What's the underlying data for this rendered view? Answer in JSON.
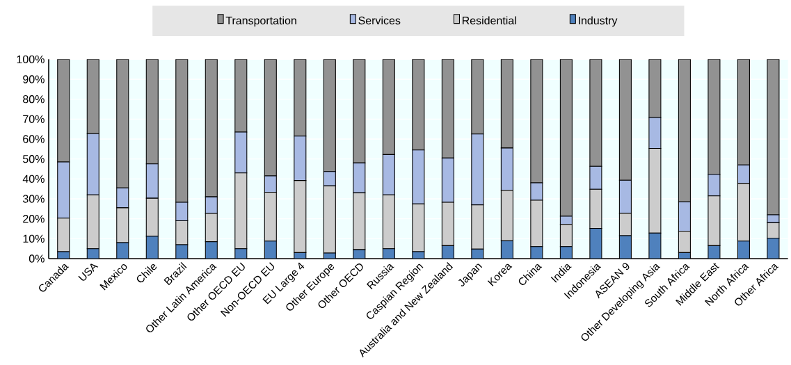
{
  "chart_data": {
    "type": "bar",
    "stacked": true,
    "categories": [
      "Canada",
      "USA",
      "Mexico",
      "Chile",
      "Brazil",
      "Other Latin America",
      "Other OECD EU",
      "Non-OECD EU",
      "EU Large 4",
      "Other Europe",
      "Other OECD",
      "Russia",
      "Caspian Region",
      "Australia and New Zealand",
      "Japan",
      "Korea",
      "China",
      "India",
      "Indonesia",
      "ASEAN 9",
      "Other Developing Asia",
      "South Africa",
      "Middle East",
      "North Africa",
      "Other Africa"
    ],
    "series": [
      {
        "name": "Industry",
        "color": "#4f81bd",
        "values": [
          3.5,
          5,
          8,
          11.3,
          7,
          8.5,
          5,
          8.8,
          3,
          2.8,
          4.5,
          5,
          3.5,
          6.5,
          4.8,
          9,
          6,
          6,
          15.2,
          11.5,
          12.8,
          3,
          6.5,
          8.8,
          10.3
        ]
      },
      {
        "name": "Residential",
        "color": "#cccccc",
        "values": [
          16.8,
          27,
          17.5,
          19,
          12,
          14.2,
          38,
          24.5,
          36.2,
          33.7,
          28.5,
          27,
          24,
          21.8,
          22.2,
          25.3,
          23.3,
          11.2,
          19.6,
          11.3,
          42.5,
          10.8,
          25,
          29,
          7.7
        ]
      },
      {
        "name": "Services",
        "color": "#a7b9e3",
        "values": [
          28.2,
          30.7,
          10,
          17.2,
          9.3,
          8.3,
          20.5,
          8.2,
          22.3,
          7.2,
          15,
          20.2,
          27,
          22.2,
          35.5,
          21.2,
          8.7,
          4.1,
          11.5,
          16.5,
          15.5,
          14.7,
          10.8,
          9.2,
          4
        ]
      },
      {
        "name": "Transportation",
        "color": "#929292",
        "values": [
          51.5,
          37.3,
          64.5,
          52.5,
          71.7,
          69,
          36.5,
          58.5,
          38.5,
          56.3,
          52,
          47.8,
          45.5,
          49.5,
          37.5,
          44.5,
          62,
          78.7,
          53.7,
          60.7,
          29.2,
          71.5,
          57.7,
          53,
          78
        ]
      }
    ],
    "ylim": [
      0,
      100
    ],
    "yticks": [
      {
        "value": 0,
        "label": "0%"
      },
      {
        "value": 10,
        "label": "10%"
      },
      {
        "value": 20,
        "label": "20%"
      },
      {
        "value": 30,
        "label": "30%"
      },
      {
        "value": 40,
        "label": "40%"
      },
      {
        "value": 50,
        "label": "50%"
      },
      {
        "value": 60,
        "label": "60%"
      },
      {
        "value": 70,
        "label": "70%"
      },
      {
        "value": 80,
        "label": "80%"
      },
      {
        "value": 90,
        "label": "90%"
      },
      {
        "value": 100,
        "label": "100%"
      }
    ],
    "grid": "y",
    "legend": "top"
  }
}
